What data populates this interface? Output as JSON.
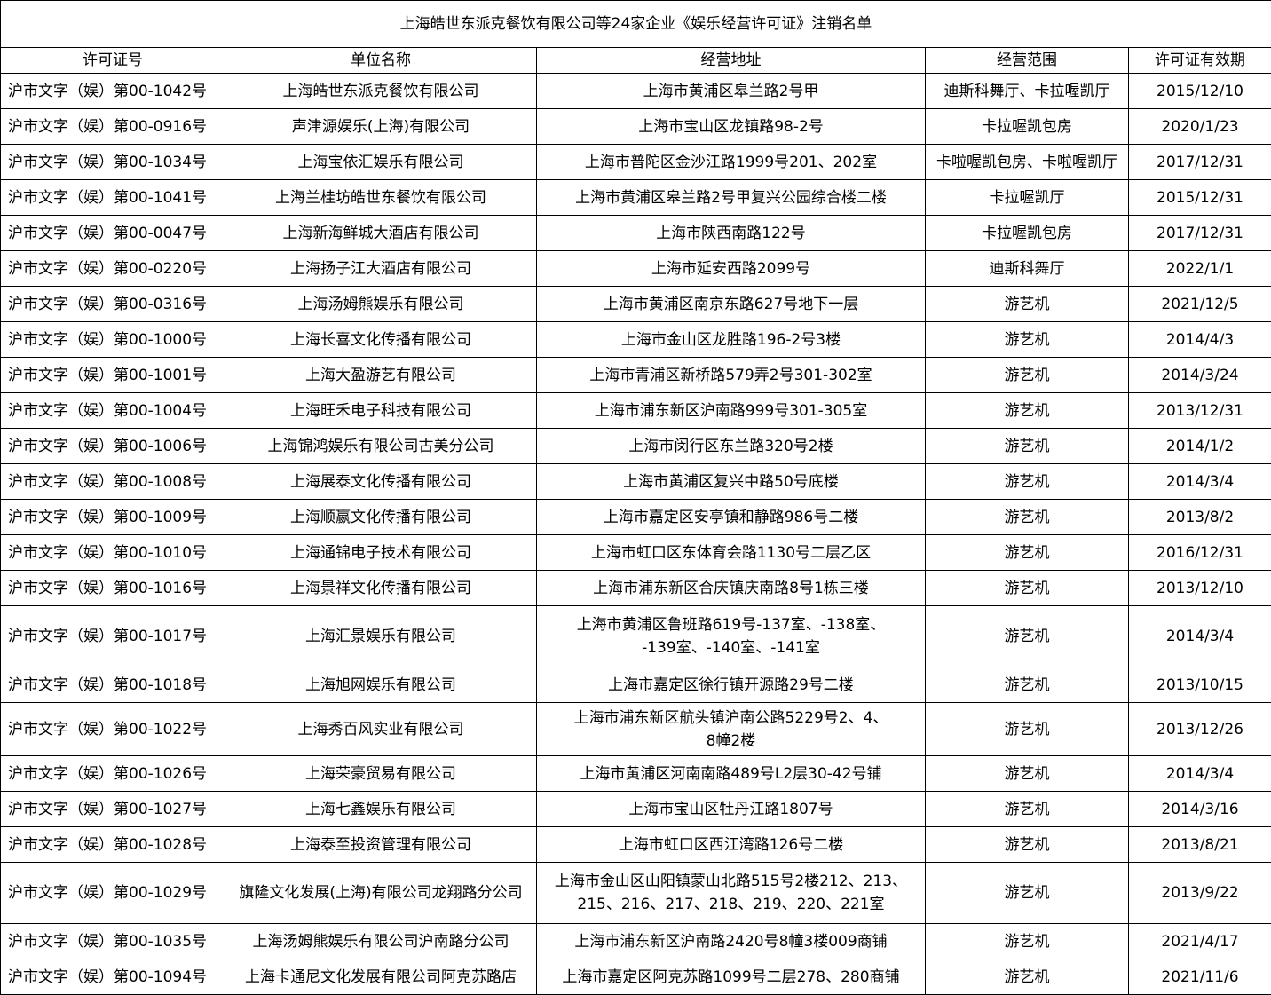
{
  "title": "上海皓世东派克餐饮有限公司等24家企业《娱乐经营许可证》注销名单",
  "columns": [
    "许可证号",
    "单位名称",
    "经营地址",
    "经营范围",
    "许可证有效期"
  ],
  "rows": [
    [
      "沪市文字（娱）第00-1042号",
      "上海皓世东派克餐饮有限公司",
      "上海市黄浦区皋兰路2号甲",
      "迪斯科舞厅、卡拉喔凯厅",
      "2015/12/10"
    ],
    [
      "沪市文字（娱）第00-0916号",
      "声津源娱乐(上海)有限公司",
      "上海市宝山区龙镇路98-2号",
      "卡拉喔凯包房",
      "2020/1/23"
    ],
    [
      "沪市文字（娱）第00-1034号",
      "上海宝依汇娱乐有限公司",
      "上海市普陀区金沙江路1999号201、202室",
      "卡啦喔凯包房、卡啦喔凯厅",
      "2017/12/31"
    ],
    [
      "沪市文字（娱）第00-1041号",
      "上海兰桂坊皓世东餐饮有限公司",
      "上海市黄浦区皋兰路2号甲复兴公园综合楼二楼",
      "卡拉喔凯厅",
      "2015/12/31"
    ],
    [
      "沪市文字（娱）第00-0047号",
      "上海新海鲜城大酒店有限公司",
      "上海市陕西南路122号",
      "卡拉喔凯包房",
      "2017/12/31"
    ],
    [
      "沪市文字（娱）第00-0220号",
      "上海扬子江大酒店有限公司",
      "上海市延安西路2099号",
      "迪斯科舞厅",
      "2022/1/1"
    ],
    [
      "沪市文字（娱）第00-0316号",
      "上海汤姆熊娱乐有限公司",
      "上海市黄浦区南京东路627号地下一层",
      "游艺机",
      "2021/12/5"
    ],
    [
      "沪市文字（娱）第00-1000号",
      "上海长喜文化传播有限公司",
      "上海市金山区龙胜路196-2号3楼",
      "游艺机",
      "2014/4/3"
    ],
    [
      "沪市文字（娱）第00-1001号",
      "上海大盈游艺有限公司",
      "上海市青浦区新桥路579弄2号301-302室",
      "游艺机",
      "2014/3/24"
    ],
    [
      "沪市文字（娱）第00-1004号",
      "上海旺禾电子科技有限公司",
      "上海市浦东新区沪南路999号301-305室",
      "游艺机",
      "2013/12/31"
    ],
    [
      "沪市文字（娱）第00-1006号",
      "上海锦鸿娱乐有限公司古美分公司",
      "上海市闵行区东兰路320号2楼",
      "游艺机",
      "2014/1/2"
    ],
    [
      "沪市文字（娱）第00-1008号",
      "上海展泰文化传播有限公司",
      "上海市黄浦区复兴中路50号底楼",
      "游艺机",
      "2014/3/4"
    ],
    [
      "沪市文字（娱）第00-1009号",
      "上海顺嬴文化传播有限公司",
      "上海市嘉定区安亭镇和静路986号二楼",
      "游艺机",
      "2013/8/2"
    ],
    [
      "沪市文字（娱）第00-1010号",
      "上海通锦电子技术有限公司",
      "上海市虹口区东体育会路1130号二层乙区",
      "游艺机",
      "2016/12/31"
    ],
    [
      "沪市文字（娱）第00-1016号",
      "上海景祥文化传播有限公司",
      "上海市浦东新区合庆镇庆南路8号1栋三楼",
      "游艺机",
      "2013/12/10"
    ],
    [
      "沪市文字（娱）第00-1017号",
      "上海汇景娱乐有限公司",
      "上海市黄浦区鲁班路619号-137室、-138室、\n-139室、-140室、-141室",
      "游艺机",
      "2014/3/4"
    ],
    [
      "沪市文字（娱）第00-1018号",
      "上海旭网娱乐有限公司",
      "上海市嘉定区徐行镇开源路29号二楼",
      "游艺机",
      "2013/10/15"
    ],
    [
      "沪市文字（娱）第00-1022号",
      "上海秀百风实业有限公司",
      "上海市浦东新区航头镇沪南公路5229号2、4、\n8幢2楼",
      "游艺机",
      "2013/12/26"
    ],
    [
      "沪市文字（娱）第00-1026号",
      "上海荣豪贸易有限公司",
      "上海市黄浦区河南南路489号L2层30-42号铺",
      "游艺机",
      "2014/3/4"
    ],
    [
      "沪市文字（娱）第00-1027号",
      "上海七鑫娱乐有限公司",
      "上海市宝山区牡丹江路1807号",
      "游艺机",
      "2014/3/16"
    ],
    [
      "沪市文字（娱）第00-1028号",
      "上海泰至投资管理有限公司",
      "上海市虹口区西江湾路126号二楼",
      "游艺机",
      "2013/8/21"
    ],
    [
      "沪市文字（娱）第00-1029号",
      "旗隆文化发展(上海)有限公司龙翔路分公司",
      "上海市金山区山阳镇蒙山北路515号2楼212、213、\n215、216、217、218、219、220、221室",
      "游艺机",
      "2013/9/22"
    ],
    [
      "沪市文字（娱）第00-1035号",
      "上海汤姆熊娱乐有限公司沪南路分公司",
      "上海市浦东新区沪南路2420号8幢3楼009商铺",
      "游艺机",
      "2021/4/17"
    ],
    [
      "沪市文字（娱）第00-1094号",
      "上海卡通尼文化发展有限公司阿克苏路店",
      "上海市嘉定区阿克苏路1099号二层278、280商铺",
      "游艺机",
      "2021/11/6"
    ]
  ]
}
